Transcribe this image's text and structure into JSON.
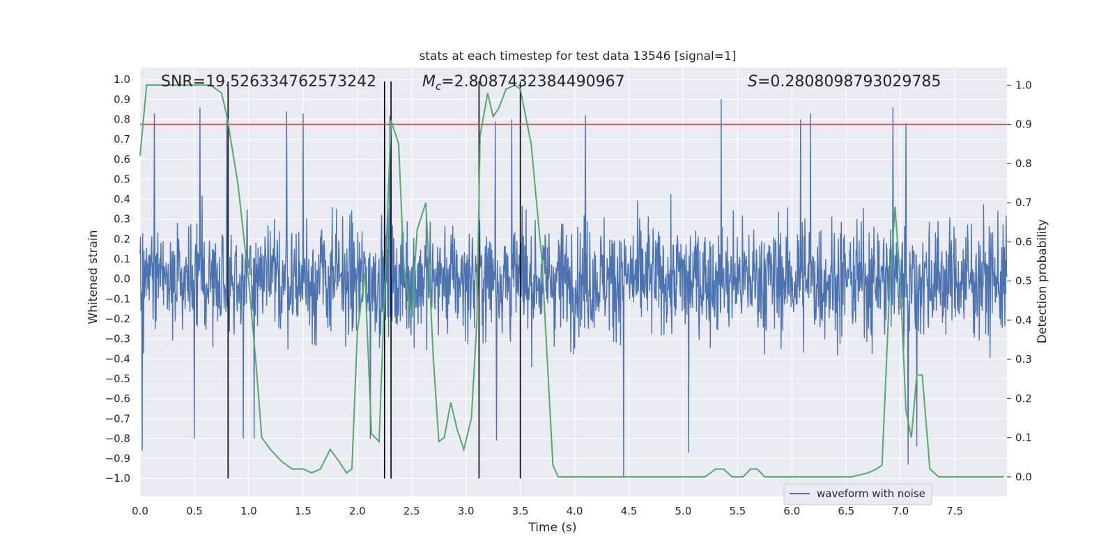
{
  "chart_data": {
    "type": "line",
    "title": "stats at each timestep for test data 13546 [signal=1]",
    "xlabel": "Time (s)",
    "ylabel": "Whitened strain",
    "y2label": "Detection probability",
    "xlim": [
      0.0,
      7.98
    ],
    "ylim": [
      -1.09,
      1.06
    ],
    "y2lim": [
      -0.05,
      1.045
    ],
    "xticks": [
      0.0,
      0.5,
      1.0,
      1.5,
      2.0,
      2.5,
      3.0,
      3.5,
      4.0,
      4.5,
      5.0,
      5.5,
      6.0,
      6.5,
      7.0,
      7.5
    ],
    "xtick_labels": [
      "0.0",
      "0.5",
      "1.0",
      "1.5",
      "2.0",
      "2.5",
      "3.0",
      "3.5",
      "4.0",
      "4.5",
      "5.0",
      "5.5",
      "6.0",
      "6.5",
      "7.0",
      "7.5"
    ],
    "yticks": [
      1.0,
      0.9,
      0.8,
      0.7,
      0.6,
      0.5,
      0.4,
      0.3,
      0.2,
      0.1,
      0.0,
      -0.1,
      -0.2,
      -0.3,
      -0.4,
      -0.5,
      -0.6,
      -0.7,
      -0.8,
      -0.9,
      -1.0
    ],
    "ytick_labels": [
      "1.0",
      "0.9",
      "0.8",
      "0.7",
      "0.6",
      "0.5",
      "0.4",
      "0.3",
      "0.2",
      "0.1",
      "0.0",
      "−0.1",
      "−0.2",
      "−0.3",
      "−0.4",
      "−0.5",
      "−0.6",
      "−0.7",
      "−0.8",
      "−0.9",
      "−1.0"
    ],
    "y2ticks": [
      1.0,
      0.9,
      0.8,
      0.7,
      0.6,
      0.5,
      0.4,
      0.3,
      0.2,
      0.1,
      0.0
    ],
    "y2tick_labels": [
      "1.0",
      "0.9",
      "0.8",
      "0.7",
      "0.6",
      "0.5",
      "0.4",
      "0.3",
      "0.2",
      "0.1",
      "0.0"
    ],
    "annotations": {
      "snr": "SNR=19.526334762573242",
      "mc_symbol": "M",
      "mc_sub": "c",
      "mc_value": "=2.8087432384490967",
      "s_symbol": "S",
      "s_value": "=0.2808098793029785"
    },
    "vertical_lines_s": [
      0.81,
      2.25,
      2.31,
      3.12,
      3.5
    ],
    "threshold_probability": 0.9,
    "waveform": {
      "name": "waveform with noise",
      "color": "#4c72b0",
      "x_range": [
        0.0,
        7.98
      ],
      "envelope_peaks": [
        [
          0.13,
          0.83
        ],
        [
          0.55,
          0.86
        ],
        [
          0.8,
          0.8
        ],
        [
          1.35,
          0.84
        ],
        [
          1.5,
          0.83
        ],
        [
          2.25,
          0.86
        ],
        [
          2.3,
          0.82
        ],
        [
          3.27,
          0.79
        ],
        [
          3.42,
          0.8
        ],
        [
          4.1,
          0.82
        ],
        [
          5.35,
          0.9
        ],
        [
          6.08,
          0.8
        ],
        [
          6.17,
          0.83
        ],
        [
          6.93,
          0.86
        ],
        [
          7.05,
          0.78
        ]
      ],
      "envelope_troughs": [
        [
          0.02,
          -0.86
        ],
        [
          0.5,
          -0.8
        ],
        [
          0.95,
          -0.8
        ],
        [
          1.05,
          -0.8
        ],
        [
          2.12,
          -0.8
        ],
        [
          3.28,
          -0.81
        ],
        [
          4.45,
          -0.99
        ],
        [
          5.05,
          -0.87
        ],
        [
          7.07,
          -0.93
        ],
        [
          7.15,
          -0.84
        ]
      ]
    },
    "detection_probability": {
      "color": "#55a868",
      "x": [
        0.0,
        0.06,
        0.12,
        0.2,
        0.3,
        0.4,
        0.5,
        0.6,
        0.65,
        0.7,
        0.75,
        0.8,
        0.9,
        1.0,
        1.07,
        1.12,
        1.2,
        1.3,
        1.4,
        1.5,
        1.58,
        1.66,
        1.75,
        1.83,
        1.9,
        1.95,
        2.0,
        2.07,
        2.13,
        2.2,
        2.25,
        2.31,
        2.38,
        2.43,
        2.5,
        2.55,
        2.63,
        2.7,
        2.75,
        2.8,
        2.86,
        2.92,
        2.98,
        3.05,
        3.1,
        3.13,
        3.2,
        3.25,
        3.3,
        3.37,
        3.45,
        3.5,
        3.6,
        3.7,
        3.8,
        3.85,
        4.0,
        4.2,
        4.4,
        4.6,
        4.75,
        4.9,
        5.0,
        5.1,
        5.2,
        5.3,
        5.37,
        5.45,
        5.55,
        5.62,
        5.68,
        5.75,
        5.83,
        5.9,
        5.97,
        6.05,
        6.2,
        6.4,
        6.55,
        6.7,
        6.78,
        6.83,
        6.9,
        6.95,
        7.0,
        7.05,
        7.1,
        7.15,
        7.2,
        7.27,
        7.35,
        7.5,
        7.7,
        7.85,
        7.95
      ],
      "y": [
        0.82,
        1.0,
        1.0,
        1.0,
        1.0,
        1.0,
        1.0,
        1.0,
        1.0,
        0.99,
        0.98,
        0.92,
        0.75,
        0.5,
        0.28,
        0.1,
        0.07,
        0.04,
        0.02,
        0.02,
        0.01,
        0.02,
        0.07,
        0.04,
        0.01,
        0.02,
        0.37,
        0.52,
        0.11,
        0.09,
        0.47,
        0.91,
        0.85,
        0.53,
        0.41,
        0.63,
        0.7,
        0.3,
        0.09,
        0.1,
        0.19,
        0.12,
        0.07,
        0.15,
        0.4,
        0.87,
        0.98,
        0.92,
        0.94,
        0.99,
        1.0,
        0.99,
        0.85,
        0.55,
        0.03,
        0.0,
        0.0,
        0.0,
        0.0,
        0.0,
        0.0,
        0.0,
        0.0,
        0.0,
        0.0,
        0.02,
        0.02,
        0.0,
        0.0,
        0.02,
        0.02,
        0.0,
        0.0,
        0.0,
        0.0,
        0.0,
        0.0,
        0.0,
        0.0,
        0.01,
        0.02,
        0.03,
        0.48,
        0.69,
        0.49,
        0.17,
        0.1,
        0.26,
        0.26,
        0.02,
        0.0,
        0.0,
        0.0,
        0.0,
        0.0
      ]
    },
    "legend": {
      "placement": "lower-right"
    }
  }
}
